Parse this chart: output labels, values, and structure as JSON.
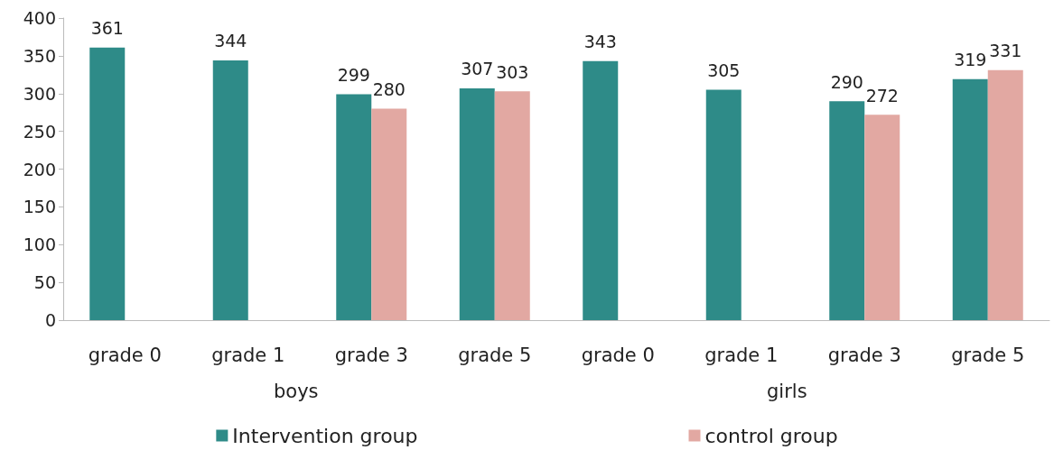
{
  "chart_data": {
    "type": "bar",
    "categories": [
      "grade 0",
      "grade 1",
      "grade 3",
      "grade 5",
      "grade 0",
      "grade 1",
      "grade 3",
      "grade 5"
    ],
    "series": [
      {
        "name": "Intervention group",
        "color": "#2e8b88",
        "values": [
          361,
          344,
          299,
          307,
          343,
          305,
          290,
          319
        ]
      },
      {
        "name": "control group",
        "color": "#e2a8a2",
        "values": [
          null,
          null,
          280,
          303,
          null,
          null,
          272,
          331
        ]
      }
    ],
    "ylim": [
      0,
      400
    ],
    "yticks": [
      0,
      50,
      100,
      150,
      200,
      250,
      300,
      350,
      400
    ],
    "annotations": [
      "boys",
      "girls"
    ],
    "data_labels": true,
    "grid": false,
    "legend": "bottom"
  }
}
